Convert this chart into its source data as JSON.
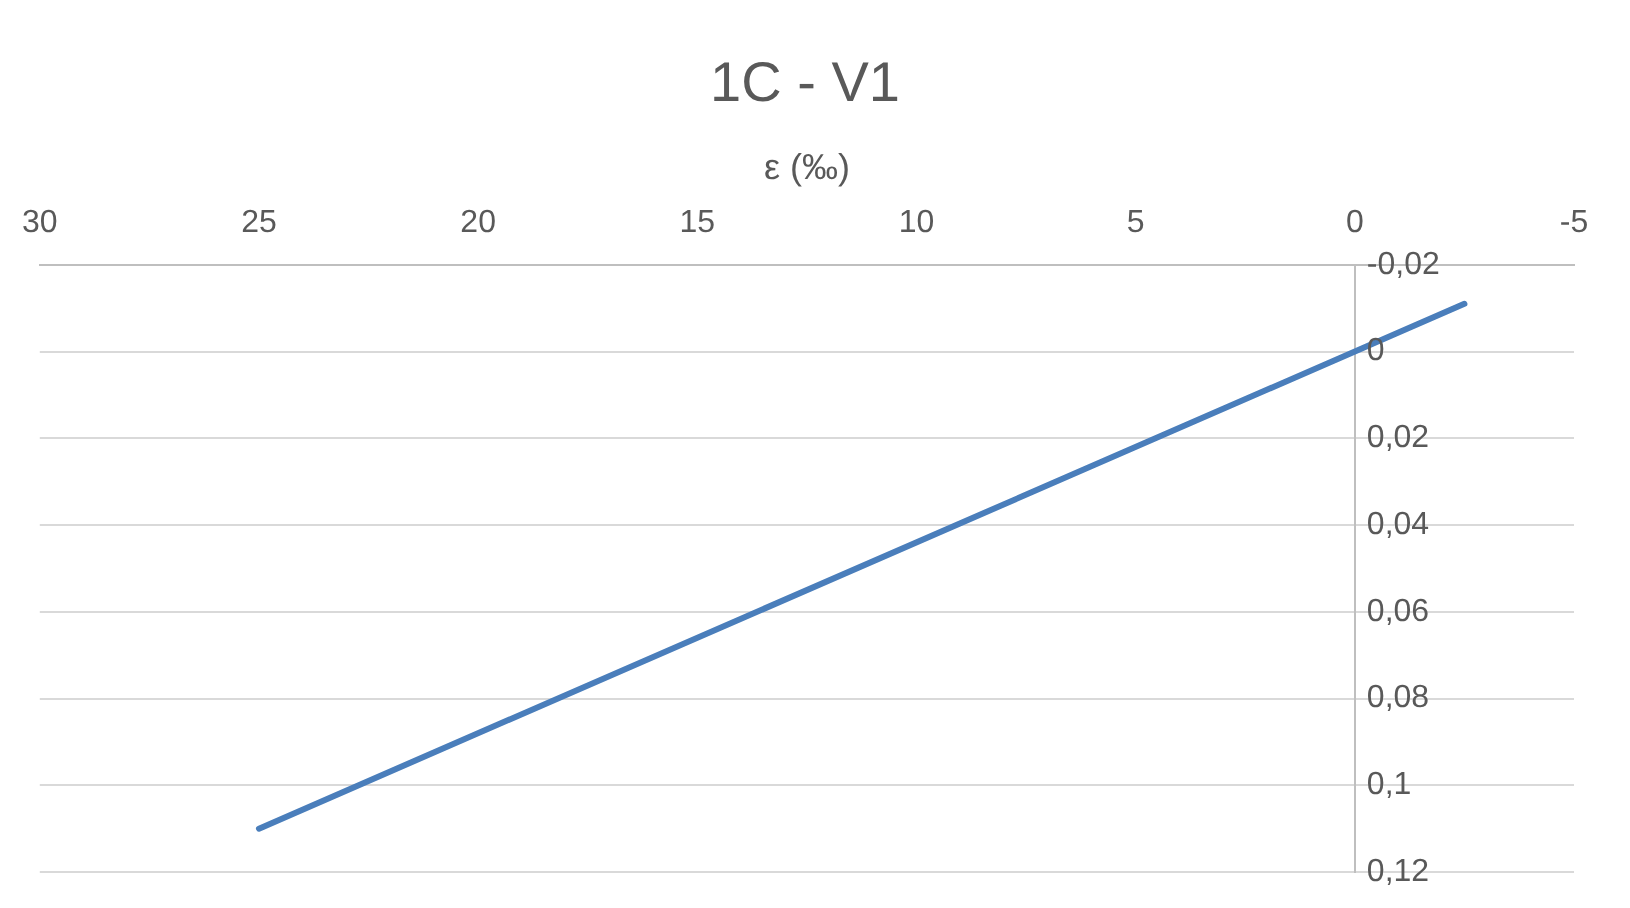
{
  "chart_data": {
    "type": "line",
    "title": "1C - V1",
    "xlabel": "ε (‰)",
    "x": [
      25,
      -2.5
    ],
    "series": [
      {
        "color": "#4a7ebb",
        "values": [
          0.11,
          -0.011
        ]
      }
    ],
    "xlim": [
      30,
      -5
    ],
    "xticks": [
      30,
      25,
      20,
      15,
      10,
      5,
      0,
      -5
    ],
    "ylim": [
      0.12,
      -0.02
    ],
    "yticks": [
      {
        "value": -0.02,
        "label": "-0,02"
      },
      {
        "value": 0,
        "label": "0"
      },
      {
        "value": 0.02,
        "label": "0,02"
      },
      {
        "value": 0.04,
        "label": "0,04"
      },
      {
        "value": 0.06,
        "label": "0,06"
      },
      {
        "value": 0.08,
        "label": "0,08"
      },
      {
        "value": 0.1,
        "label": "0,1"
      },
      {
        "value": 0.12,
        "label": "0,12"
      }
    ],
    "grid": "y",
    "legend": false,
    "marker": "none",
    "line_style": "solid"
  }
}
